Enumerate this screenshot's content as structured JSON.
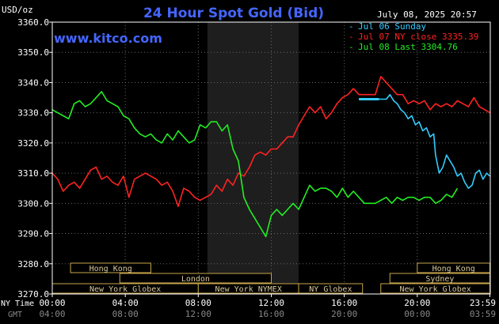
{
  "chart_data": {
    "type": "line",
    "title": "24 Hour Spot Gold (Bid)",
    "watermark": "www.kitco.com",
    "unit_label": "USD/oz",
    "timestamp": "July 08, 2025 20:57",
    "ylim": [
      3270,
      3360
    ],
    "y_ticks": [
      "3360.0",
      "3350.0",
      "3340.0",
      "3330.0",
      "3320.0",
      "3310.0",
      "3300.0",
      "3290.0",
      "3280.0",
      "3270.0"
    ],
    "y_tick_values": [
      3360,
      3350,
      3340,
      3330,
      3320,
      3310,
      3300,
      3290,
      3280,
      3270
    ],
    "xlim": [
      0,
      24
    ],
    "x_ticks_ny": [
      "00:00",
      "04:00",
      "08:00",
      "12:00",
      "16:00",
      "20:00",
      "23:59"
    ],
    "x_ticks_gmt": [
      "04:00",
      "08:00",
      "12:00",
      "16:00",
      "20:00",
      "00:00",
      "03:59"
    ],
    "x_tick_hours": [
      0,
      4,
      8,
      12,
      16,
      20,
      23.98
    ],
    "x_axis_label_ny": "NY Time",
    "x_axis_label_gmt": "GMT",
    "highlight_hours": [
      8.5,
      13.5
    ],
    "legend": [
      {
        "label": "Jul 06 Sunday",
        "color": "#33ccff"
      },
      {
        "label": "Jul 07 NY close 3335.39",
        "color": "#ff2222"
      },
      {
        "label": "Jul 08 Last 3304.76",
        "color": "#22ee22"
      }
    ],
    "series": [
      {
        "name": "Jul 06 Sunday",
        "color": "#33ccff",
        "x": [
          17.9,
          18.1,
          18.3,
          18.5,
          18.7,
          18.9,
          19.1,
          19.3,
          19.5,
          19.7,
          19.9,
          20.1,
          20.3,
          20.5,
          20.7,
          20.9,
          21.0,
          21.2,
          21.4,
          21.6,
          21.8,
          22.0,
          22.2,
          22.4,
          22.6,
          22.8,
          23.0,
          23.2,
          23.4,
          23.6,
          23.8,
          23.98
        ],
        "y": [
          3334.5,
          3334.5,
          3334.5,
          3336,
          3334,
          3333,
          3331,
          3330,
          3328,
          3329,
          3326,
          3327,
          3324,
          3325,
          3322,
          3323,
          3316,
          3310,
          3312,
          3316,
          3314,
          3312,
          3309,
          3310,
          3307,
          3305,
          3306,
          3310,
          3311,
          3308,
          3310,
          3309
        ]
      },
      {
        "name": "Jul 07 NY close 3335.39",
        "color": "#ff2222",
        "x": [
          0,
          0.3,
          0.6,
          0.9,
          1.2,
          1.5,
          1.8,
          2.1,
          2.4,
          2.7,
          3.0,
          3.3,
          3.6,
          3.9,
          4.2,
          4.5,
          4.8,
          5.1,
          5.4,
          5.7,
          6.0,
          6.3,
          6.6,
          6.9,
          7.2,
          7.5,
          7.8,
          8.1,
          8.4,
          8.7,
          9.0,
          9.3,
          9.6,
          9.9,
          10.2,
          10.5,
          10.8,
          11.1,
          11.4,
          11.7,
          12.0,
          12.3,
          12.6,
          12.9,
          13.2,
          13.5,
          13.8,
          14.1,
          14.4,
          14.7,
          15.0,
          15.3,
          15.6,
          15.9,
          16.2,
          16.5,
          16.8,
          17.1,
          17.4,
          17.7,
          18.0,
          18.3,
          18.6,
          18.9,
          19.2,
          19.5,
          19.8,
          20.1,
          20.4,
          20.7,
          21.0,
          21.3,
          21.6,
          21.9,
          22.2,
          22.5,
          22.8,
          23.1,
          23.4,
          23.7,
          23.98
        ],
        "y": [
          3310,
          3308,
          3304,
          3306,
          3307,
          3305,
          3308,
          3311,
          3312,
          3308,
          3309,
          3307,
          3306,
          3309,
          3302,
          3308,
          3309,
          3310,
          3309,
          3308,
          3306,
          3307,
          3304,
          3299,
          3305,
          3304,
          3302,
          3301,
          3302,
          3303,
          3306,
          3304,
          3308,
          3306,
          3310,
          3309,
          3312,
          3316,
          3317,
          3316,
          3318,
          3318,
          3320,
          3322,
          3322,
          3326,
          3329,
          3332,
          3330,
          3332,
          3328,
          3330,
          3333,
          3335,
          3336,
          3338,
          3336,
          3336,
          3336,
          3336,
          3342,
          3340,
          3338,
          3336,
          3336,
          3333,
          3334,
          3333,
          3334,
          3331,
          3333,
          3332,
          3333,
          3332,
          3334,
          3333,
          3332,
          3335,
          3332,
          3331,
          3330
        ]
      },
      {
        "name": "Jul 08 Last 3304.76",
        "color": "#22ee22",
        "x": [
          0,
          0.3,
          0.6,
          0.9,
          1.2,
          1.5,
          1.8,
          2.1,
          2.4,
          2.7,
          3.0,
          3.3,
          3.6,
          3.9,
          4.2,
          4.5,
          4.8,
          5.1,
          5.4,
          5.7,
          6.0,
          6.3,
          6.6,
          6.9,
          7.2,
          7.5,
          7.8,
          8.1,
          8.4,
          8.7,
          9.0,
          9.3,
          9.6,
          9.9,
          10.2,
          10.5,
          10.8,
          11.1,
          11.4,
          11.7,
          12.0,
          12.3,
          12.6,
          12.9,
          13.2,
          13.5,
          13.8,
          14.1,
          14.4,
          14.7,
          15.0,
          15.3,
          15.6,
          15.9,
          16.2,
          16.5,
          16.8,
          17.1,
          17.4,
          17.7,
          18.0,
          18.3,
          18.6,
          18.9,
          19.2,
          19.5,
          19.8,
          20.1,
          20.4,
          20.7,
          21.0,
          21.3,
          21.6,
          21.9,
          22.2
        ],
        "y": [
          3331,
          3330,
          3329,
          3328,
          3333,
          3334,
          3332,
          3333,
          3335,
          3337,
          3334,
          3333,
          3332,
          3329,
          3328,
          3325,
          3323,
          3322,
          3323,
          3321,
          3320,
          3323,
          3321,
          3324,
          3322,
          3320,
          3321,
          3326,
          3325,
          3327,
          3327,
          3324,
          3326,
          3318,
          3314,
          3302,
          3298,
          3295,
          3292,
          3289,
          3296,
          3298,
          3296,
          3298,
          3300,
          3298,
          3302,
          3306,
          3304,
          3305,
          3305,
          3304,
          3302,
          3305,
          3302,
          3304,
          3302,
          3300,
          3300,
          3300,
          3301,
          3302,
          3300,
          3302,
          3301,
          3302,
          3302,
          3301,
          3302,
          3302,
          3300,
          3301,
          3303,
          3302,
          3305
        ]
      }
    ],
    "market_sessions": [
      {
        "label": "Hong Kong",
        "start": 1.0,
        "end": 5.4,
        "row": 0
      },
      {
        "label": "London",
        "start": 3.7,
        "end": 12.0,
        "row": 1
      },
      {
        "label": "New York Globex",
        "start": 0.0,
        "end": 8.0,
        "row": 2
      },
      {
        "label": "New York NYMEX",
        "start": 8.0,
        "end": 13.5,
        "row": 2
      },
      {
        "label": "NY Globex",
        "start": 13.5,
        "end": 17.0,
        "row": 2
      },
      {
        "label": "Hong Kong",
        "start": 20.0,
        "end": 23.98,
        "row": 0
      },
      {
        "label": "Sydney",
        "start": 18.5,
        "end": 23.98,
        "row": 1
      },
      {
        "label": "New York Globex",
        "start": 18.0,
        "end": 23.98,
        "row": 2
      }
    ]
  }
}
